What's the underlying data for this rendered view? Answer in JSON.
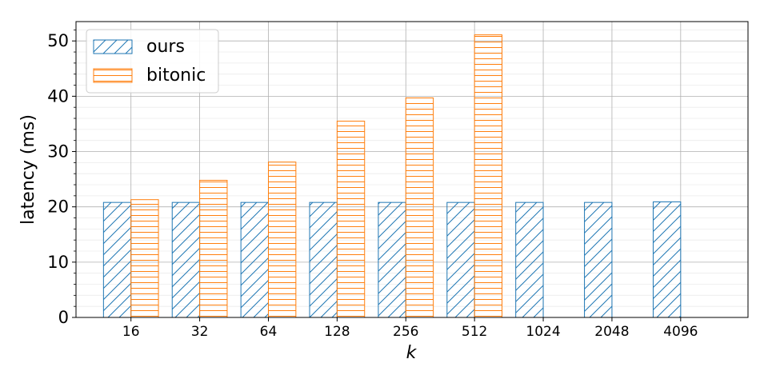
{
  "chart_data": {
    "type": "bar",
    "x_label": "k",
    "y_label": "latency (ms)",
    "categories": [
      "16",
      "32",
      "64",
      "128",
      "256",
      "512",
      "1024",
      "2048",
      "4096"
    ],
    "series": [
      {
        "name": "ours",
        "color": "#1f77b4",
        "hatch": "diagonal",
        "values": [
          20.8,
          20.8,
          20.8,
          20.8,
          20.8,
          20.8,
          20.8,
          20.8,
          20.9
        ]
      },
      {
        "name": "bitonic",
        "color": "#ff7f0e",
        "hatch": "horizontal",
        "values": [
          21.3,
          24.8,
          28.1,
          35.5,
          39.7,
          51.1,
          null,
          null,
          null
        ]
      }
    ],
    "ylim": [
      0,
      53.5
    ],
    "yticks": [
      0,
      10,
      20,
      30,
      40,
      50
    ],
    "yminorticks": [
      2,
      4,
      6,
      8,
      12,
      14,
      16,
      18,
      22,
      24,
      26,
      28,
      32,
      34,
      36,
      38,
      42,
      44,
      46,
      48,
      52
    ],
    "grid": true,
    "legend": "upper left"
  }
}
